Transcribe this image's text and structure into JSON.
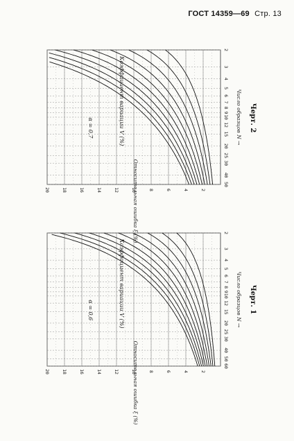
{
  "header": {
    "gost": "ГОСТ 14359—69",
    "page": "Стр. 13"
  },
  "chart_data": [
    {
      "type": "line",
      "title": "Черт. 1",
      "alpha_label": "α = 0,6",
      "xlabel": "Число образцов N",
      "ylabel": "Относительная ошибка ξ (%)",
      "curve_label": "Коэффициент вариации V (%)",
      "x_ticks": [
        "2",
        "3",
        "4",
        "5",
        "6",
        "7",
        "8",
        "9",
        "10",
        "12",
        "15",
        "20",
        "25",
        "30",
        "40",
        "50",
        "60"
      ],
      "y_ticks": [
        "2",
        "4",
        "6",
        "8",
        "10",
        "12",
        "14",
        "16",
        "18",
        "20"
      ],
      "xlim": [
        2,
        60
      ],
      "ylim": [
        0,
        20
      ],
      "v_values": [
        6,
        8,
        10,
        12,
        14,
        16,
        18,
        20,
        22,
        24
      ],
      "k": 0.0842,
      "offset": 1
    },
    {
      "type": "line",
      "title": "Черт. 2",
      "alpha_label": "α = 0,7",
      "xlabel": "Число образцов N",
      "ylabel": "Относительная ошибка ξ (%)",
      "curve_label": "Коэффициент вариации V (%)",
      "x_ticks": [
        "2",
        "3",
        "4",
        "5",
        "6",
        "7",
        "8",
        "9",
        "10",
        "12",
        "15",
        "20",
        "25",
        "30",
        "40",
        "50"
      ],
      "y_ticks": [
        "2",
        "4",
        "6",
        "8",
        "10",
        "12",
        "14",
        "16",
        "18",
        "20"
      ],
      "xlim": [
        2,
        50
      ],
      "ylim": [
        0,
        20
      ],
      "v_values": [
        6,
        8,
        10,
        12,
        14,
        16,
        18,
        20,
        22,
        24
      ],
      "k": 0.106,
      "offset": 1
    }
  ]
}
